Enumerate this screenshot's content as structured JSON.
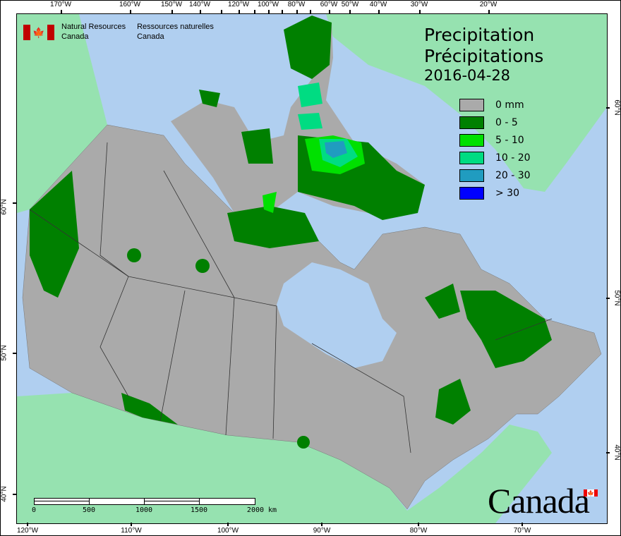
{
  "title": {
    "en": "Precipitation",
    "fr": "Précipitations",
    "date": "2016-04-28"
  },
  "agency": {
    "en_line1": "Natural Resources",
    "en_line2": "Canada",
    "fr_line1": "Ressources naturelles",
    "fr_line2": "Canada"
  },
  "legend": [
    {
      "label": "0 mm",
      "color": "#aaaaaa"
    },
    {
      "label": "0 - 5",
      "color": "#008000"
    },
    {
      "label": "5 - 10",
      "color": "#00e000"
    },
    {
      "label": "10 - 20",
      "color": "#00dc82"
    },
    {
      "label": "20 - 30",
      "color": "#209cc0"
    },
    {
      "label": "> 30",
      "color": "#0000ff"
    }
  ],
  "top_ticks": [
    "170°W",
    "160°W",
    "150°W",
    "140°W",
    "120°W",
    "100°W",
    "80°W",
    "60°W",
    "50°W",
    "40°W",
    "30°W",
    "20°W"
  ],
  "bottom_ticks": [
    "120°W",
    "110°W",
    "100°W",
    "90°W",
    "80°W",
    "70°W"
  ],
  "left_ticks": [
    "60°N",
    "50°N",
    "40°N"
  ],
  "right_ticks": [
    "60°N",
    "50°N",
    "40°N"
  ],
  "scale": {
    "labels": [
      "0",
      "500",
      "1000",
      "1500",
      "2000 km"
    ]
  },
  "wordmark": "Canada",
  "colors": {
    "ocean": "#b0cff0",
    "foreign_land": "#96e2b0",
    "border": "#333333"
  }
}
